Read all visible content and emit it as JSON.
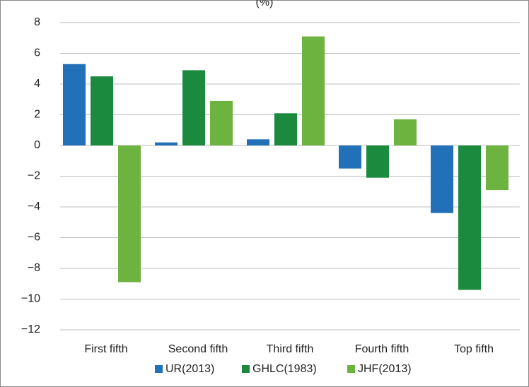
{
  "chart_data": {
    "type": "bar",
    "title": "(%)",
    "categories": [
      "First fifth",
      "Second fifth",
      "Third fifth",
      "Fourth fifth",
      "Top fifth"
    ],
    "series": [
      {
        "name": "UR(2013)",
        "color": "#2271b8",
        "values": [
          5.3,
          0.2,
          0.4,
          -1.5,
          -4.4
        ]
      },
      {
        "name": "GHLC(1983)",
        "color": "#1b8a3e",
        "values": [
          4.5,
          4.9,
          2.1,
          -2.1,
          -9.4
        ]
      },
      {
        "name": "JHF(2013)",
        "color": "#6db33f",
        "values": [
          -8.9,
          2.9,
          7.1,
          1.7,
          -2.9
        ]
      }
    ],
    "ylim": [
      -12,
      8
    ],
    "yticks": [
      {
        "value": -12,
        "label": "−12"
      },
      {
        "value": -10,
        "label": "−10"
      },
      {
        "value": -8,
        "label": "−8"
      },
      {
        "value": -6,
        "label": "−6"
      },
      {
        "value": -4,
        "label": "−4"
      },
      {
        "value": -2,
        "label": "−2"
      },
      0,
      2,
      4,
      6,
      8
    ],
    "grid": true,
    "legend": "bottom"
  }
}
